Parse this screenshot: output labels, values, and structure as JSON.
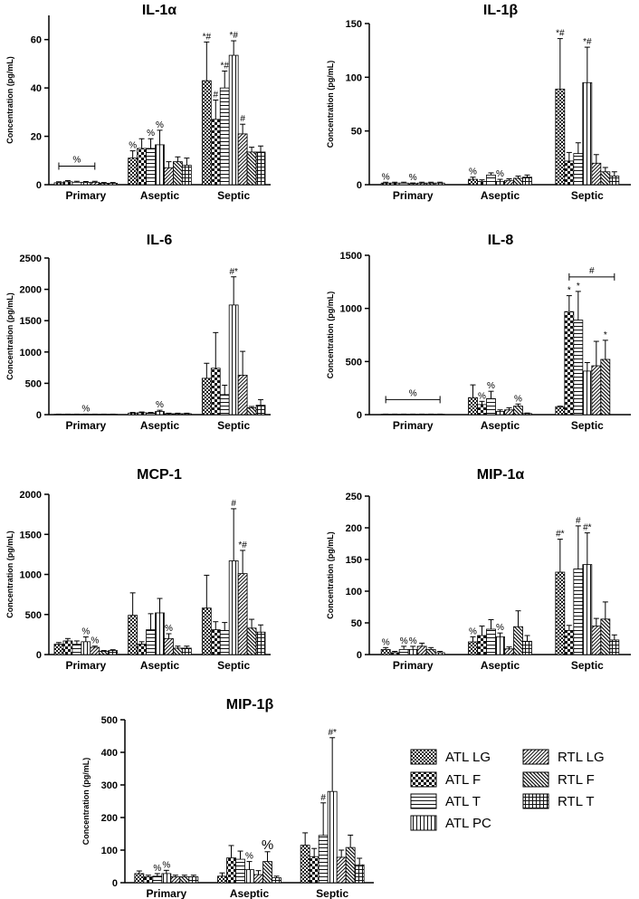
{
  "figure": {
    "ylabel": "Concentration (pg/mL)",
    "groups": [
      "Primary",
      "Aseptic",
      "Septic"
    ]
  },
  "legend": {
    "items": [
      {
        "label": "ATL LG",
        "pattern": "atl-lg"
      },
      {
        "label": "ATL F",
        "pattern": "atl-f"
      },
      {
        "label": "ATL T",
        "pattern": "atl-t"
      },
      {
        "label": "ATL PC",
        "pattern": "atl-pc"
      },
      {
        "label": "RTL LG",
        "pattern": "rtl-lg"
      },
      {
        "label": "RTL F",
        "pattern": "rtl-f"
      },
      {
        "label": "RTL T",
        "pattern": "rtl-t"
      }
    ]
  },
  "chart_data": [
    {
      "type": "bar",
      "title": "IL-1α",
      "ylabel": "Concentration (pg/mL)",
      "ylim": [
        0,
        70
      ],
      "yticks": [
        0,
        20,
        40,
        60
      ],
      "categories": [
        "Primary",
        "Aseptic",
        "Septic"
      ],
      "series": [
        {
          "name": "ATL LG",
          "values": [
            0.8,
            11,
            43
          ],
          "errors": [
            0.4,
            3,
            16
          ]
        },
        {
          "name": "ATL F",
          "values": [
            1.2,
            15,
            27
          ],
          "errors": [
            0.5,
            4,
            8
          ]
        },
        {
          "name": "ATL T",
          "values": [
            1.0,
            15,
            40
          ],
          "errors": [
            0.4,
            4,
            7
          ]
        },
        {
          "name": "ATL PC",
          "values": [
            0.9,
            16.5,
            53.5
          ],
          "errors": [
            0.4,
            6,
            6
          ]
        },
        {
          "name": "RTL LG",
          "values": [
            1.0,
            7,
            21
          ],
          "errors": [
            0.4,
            2.5,
            4
          ]
        },
        {
          "name": "RTL F",
          "values": [
            0.6,
            9.5,
            13.5
          ],
          "errors": [
            0.3,
            2,
            2
          ]
        },
        {
          "name": "RTL T",
          "values": [
            0.6,
            8,
            13.5
          ],
          "errors": [
            0.3,
            3,
            2.5
          ]
        }
      ],
      "annotations": [
        {
          "text": "%",
          "group": 0,
          "bracket": [
            0,
            4
          ]
        },
        {
          "text": "%",
          "group": 1,
          "bar": 0
        },
        {
          "text": "%",
          "group": 1,
          "bar": 2
        },
        {
          "text": "%",
          "group": 1,
          "bar": 3
        },
        {
          "text": "*#",
          "group": 2,
          "bar": 0
        },
        {
          "text": "#",
          "group": 2,
          "bar": 1
        },
        {
          "text": "*#",
          "group": 2,
          "bar": 2
        },
        {
          "text": "*#",
          "group": 2,
          "bar": 3
        },
        {
          "text": "#",
          "group": 2,
          "bar": 4
        }
      ]
    },
    {
      "type": "bar",
      "title": "IL-1β",
      "ylabel": "Concentration (pg/mL)",
      "ylim": [
        0,
        150
      ],
      "yticks": [
        0,
        50,
        100,
        150
      ],
      "categories": [
        "Primary",
        "Aseptic",
        "Septic"
      ],
      "series": [
        {
          "name": "ATL LG",
          "values": [
            1.5,
            5,
            89
          ],
          "errors": [
            0.8,
            2,
            47
          ]
        },
        {
          "name": "ATL F",
          "values": [
            1.5,
            3,
            22
          ],
          "errors": [
            0.8,
            1.5,
            8
          ]
        },
        {
          "name": "ATL T",
          "values": [
            1.5,
            9,
            29
          ],
          "errors": [
            0.8,
            2,
            10
          ]
        },
        {
          "name": "ATL PC",
          "values": [
            1.0,
            3,
            95
          ],
          "errors": [
            0.6,
            2,
            33
          ]
        },
        {
          "name": "RTL LG",
          "values": [
            1.5,
            4,
            20
          ],
          "errors": [
            0.8,
            1.5,
            8
          ]
        },
        {
          "name": "RTL F",
          "values": [
            1.5,
            6,
            12
          ],
          "errors": [
            0.8,
            2,
            4
          ]
        },
        {
          "name": "RTL T",
          "values": [
            1.5,
            7,
            8
          ],
          "errors": [
            0.8,
            2,
            4
          ]
        }
      ],
      "annotations": [
        {
          "text": "%",
          "group": 0,
          "bar": 0
        },
        {
          "text": "%",
          "group": 0,
          "bar": 3
        },
        {
          "text": "%",
          "group": 1,
          "bar": 0
        },
        {
          "text": "%",
          "group": 1,
          "bar": 3
        },
        {
          "text": "*#",
          "group": 2,
          "bar": 0
        },
        {
          "text": "*#",
          "group": 2,
          "bar": 3
        }
      ]
    },
    {
      "type": "bar",
      "title": "IL-6",
      "ylabel": "Concentration (pg/mL)",
      "ylim": [
        0,
        2500
      ],
      "yticks": [
        0,
        500,
        1000,
        1500,
        2000,
        2500
      ],
      "categories": [
        "Primary",
        "Aseptic",
        "Septic"
      ],
      "series": [
        {
          "name": "ATL LG",
          "values": [
            5,
            25,
            580
          ],
          "errors": [
            3,
            10,
            240
          ]
        },
        {
          "name": "ATL F",
          "values": [
            5,
            30,
            740
          ],
          "errors": [
            3,
            12,
            570
          ]
        },
        {
          "name": "ATL T",
          "values": [
            5,
            25,
            320
          ],
          "errors": [
            3,
            10,
            150
          ]
        },
        {
          "name": "ATL PC",
          "values": [
            5,
            50,
            1750
          ],
          "errors": [
            3,
            20,
            450
          ]
        },
        {
          "name": "RTL LG",
          "values": [
            5,
            15,
            630
          ],
          "errors": [
            3,
            8,
            380
          ]
        },
        {
          "name": "RTL F",
          "values": [
            5,
            15,
            110
          ],
          "errors": [
            3,
            8,
            20
          ]
        },
        {
          "name": "RTL T",
          "values": [
            5,
            15,
            150
          ],
          "errors": [
            3,
            8,
            90
          ]
        }
      ],
      "annotations": [
        {
          "text": "%",
          "group": 0,
          "bar": 3
        },
        {
          "text": "%",
          "group": 1,
          "bar": 3
        },
        {
          "text": "#*",
          "group": 2,
          "bar": 3
        }
      ]
    },
    {
      "type": "bar",
      "title": "IL-8",
      "ylabel": "Concentration (pg/mL)",
      "ylim": [
        0,
        1500
      ],
      "yticks": [
        0,
        500,
        1000,
        1500
      ],
      "categories": [
        "Primary",
        "Aseptic",
        "Septic"
      ],
      "series": [
        {
          "name": "ATL LG",
          "values": [
            3,
            160,
            75
          ],
          "errors": [
            2,
            120,
            5
          ]
        },
        {
          "name": "ATL F",
          "values": [
            3,
            95,
            970
          ],
          "errors": [
            2,
            30,
            150
          ]
        },
        {
          "name": "ATL T",
          "values": [
            3,
            150,
            890
          ],
          "errors": [
            2,
            70,
            270
          ]
        },
        {
          "name": "ATL PC",
          "values": [
            3,
            30,
            410
          ],
          "errors": [
            2,
            15,
            80
          ]
        },
        {
          "name": "RTL LG",
          "values": [
            3,
            45,
            460
          ],
          "errors": [
            2,
            20,
            230
          ]
        },
        {
          "name": "RTL F",
          "values": [
            3,
            80,
            520
          ],
          "errors": [
            2,
            20,
            180
          ]
        },
        {
          "name": "RTL T",
          "values": [
            3,
            10,
            0
          ],
          "errors": [
            2,
            5,
            0
          ]
        }
      ],
      "annotations": [
        {
          "text": "%",
          "group": 0,
          "bracket": [
            0,
            6
          ]
        },
        {
          "text": "%",
          "group": 1,
          "bar": 1
        },
        {
          "text": "%",
          "group": 1,
          "bar": 2
        },
        {
          "text": "%",
          "group": 1,
          "bar": 5
        },
        {
          "text": "*",
          "group": 2,
          "bar": 1
        },
        {
          "text": "*",
          "group": 2,
          "bar": 2
        },
        {
          "text": "*",
          "group": 2,
          "bar": 5
        },
        {
          "text": "#",
          "group": 2,
          "bracket": [
            1,
            6
          ]
        }
      ]
    },
    {
      "type": "bar",
      "title": "MCP-1",
      "ylabel": "Concentration (pg/mL)",
      "ylim": [
        0,
        2000
      ],
      "yticks": [
        0,
        500,
        1000,
        1500,
        2000
      ],
      "categories": [
        "Primary",
        "Aseptic",
        "Septic"
      ],
      "series": [
        {
          "name": "ATL LG",
          "values": [
            130,
            490,
            580
          ],
          "errors": [
            20,
            280,
            410
          ]
        },
        {
          "name": "ATL F",
          "values": [
            170,
            130,
            310
          ],
          "errors": [
            30,
            30,
            100
          ]
        },
        {
          "name": "ATL T",
          "values": [
            130,
            310,
            300
          ],
          "errors": [
            40,
            200,
            100
          ]
        },
        {
          "name": "ATL PC",
          "values": [
            160,
            520,
            1170
          ],
          "errors": [
            60,
            180,
            650
          ]
        },
        {
          "name": "RTL LG",
          "values": [
            90,
            200,
            1010
          ],
          "errors": [
            15,
            60,
            290
          ]
        },
        {
          "name": "RTL F",
          "values": [
            40,
            80,
            330
          ],
          "errors": [
            10,
            25,
            110
          ]
        },
        {
          "name": "RTL T",
          "values": [
            50,
            80,
            280
          ],
          "errors": [
            10,
            25,
            90
          ]
        }
      ],
      "annotations": [
        {
          "text": "%",
          "group": 0,
          "bar": 3
        },
        {
          "text": "%",
          "group": 0,
          "bar": 4
        },
        {
          "text": "%",
          "group": 1,
          "bar": 4
        },
        {
          "text": "#",
          "group": 2,
          "bar": 3
        },
        {
          "text": "*#",
          "group": 2,
          "bar": 4
        }
      ]
    },
    {
      "type": "bar",
      "title": "MIP-1α",
      "ylabel": "Concentration (pg/mL)",
      "ylim": [
        0,
        250
      ],
      "yticks": [
        0,
        50,
        100,
        150,
        200,
        250
      ],
      "categories": [
        "Primary",
        "Aseptic",
        "Septic"
      ],
      "series": [
        {
          "name": "ATL LG",
          "values": [
            8,
            20,
            130
          ],
          "errors": [
            3,
            8,
            52
          ]
        },
        {
          "name": "ATL F",
          "values": [
            3,
            30,
            38
          ],
          "errors": [
            2,
            15,
            8
          ]
        },
        {
          "name": "ATL T",
          "values": [
            8,
            40,
            135
          ],
          "errors": [
            5,
            15,
            68
          ]
        },
        {
          "name": "ATL PC",
          "values": [
            8,
            28,
            142
          ],
          "errors": [
            5,
            6,
            50
          ]
        },
        {
          "name": "RTL LG",
          "values": [
            13,
            9,
            45
          ],
          "errors": [
            5,
            3,
            12
          ]
        },
        {
          "name": "RTL F",
          "values": [
            8,
            44,
            56
          ],
          "errors": [
            3,
            25,
            27
          ]
        },
        {
          "name": "RTL T",
          "values": [
            3,
            21,
            23
          ],
          "errors": [
            2,
            9,
            8
          ]
        }
      ],
      "annotations": [
        {
          "text": "%",
          "group": 0,
          "bar": 0
        },
        {
          "text": "%",
          "group": 0,
          "bar": 2
        },
        {
          "text": "%",
          "group": 0,
          "bar": 3
        },
        {
          "text": "%",
          "group": 1,
          "bar": 0
        },
        {
          "text": "%",
          "group": 1,
          "bar": 3
        },
        {
          "text": "#*",
          "group": 2,
          "bar": 0
        },
        {
          "text": "#",
          "group": 2,
          "bar": 2
        },
        {
          "text": "#*",
          "group": 2,
          "bar": 3
        }
      ]
    },
    {
      "type": "bar",
      "title": "MIP-1β",
      "ylabel": "Concentration (pg/mL)",
      "ylim": [
        0,
        500
      ],
      "yticks": [
        0,
        100,
        200,
        300,
        400,
        500
      ],
      "categories": [
        "Primary",
        "Aseptic",
        "Septic"
      ],
      "series": [
        {
          "name": "ATL LG",
          "values": [
            28,
            20,
            115
          ],
          "errors": [
            8,
            10,
            38
          ]
        },
        {
          "name": "ATL F",
          "values": [
            18,
            76,
            80
          ],
          "errors": [
            5,
            38,
            25
          ]
        },
        {
          "name": "ATL T",
          "values": [
            20,
            72,
            145
          ],
          "errors": [
            8,
            25,
            100
          ]
        },
        {
          "name": "ATL PC",
          "values": [
            28,
            40,
            280
          ],
          "errors": [
            10,
            25,
            165
          ]
        },
        {
          "name": "RTL LG",
          "values": [
            18,
            25,
            78
          ],
          "errors": [
            5,
            12,
            22
          ]
        },
        {
          "name": "RTL F",
          "values": [
            18,
            65,
            108
          ],
          "errors": [
            5,
            30,
            38
          ]
        },
        {
          "name": "RTL T",
          "values": [
            18,
            15,
            55
          ],
          "errors": [
            5,
            5,
            20
          ]
        }
      ],
      "annotations": [
        {
          "text": "%",
          "group": 0,
          "bar": 2
        },
        {
          "text": "%",
          "group": 0,
          "bar": 3
        },
        {
          "text": "%",
          "group": 1,
          "bar": 3
        },
        {
          "text": "%",
          "group": 1,
          "bar": 5,
          "large": true
        },
        {
          "text": "#",
          "group": 2,
          "bar": 2
        },
        {
          "text": "#*",
          "group": 2,
          "bar": 3
        }
      ]
    }
  ]
}
